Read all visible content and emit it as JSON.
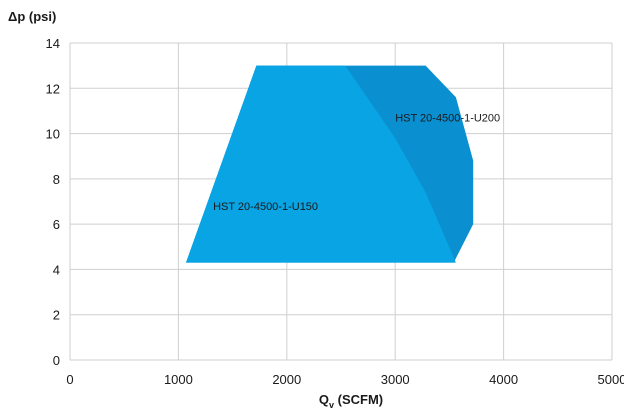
{
  "chart_data": {
    "type": "area",
    "xlabel": "Q",
    "xlabel_subscript": "v",
    "xlabel_unit": "(SCFM)",
    "ylabel": "Δp (psi)",
    "xlim": [
      0,
      5000
    ],
    "ylim": [
      0,
      14
    ],
    "x_ticks": [
      0,
      1000,
      2000,
      3000,
      4000,
      5000
    ],
    "y_ticks": [
      0,
      2,
      4,
      6,
      8,
      10,
      12,
      14
    ],
    "grid": true,
    "series": [
      {
        "name": "HST 20-4500-1-U200",
        "color": "#0a8fd0",
        "points": [
          [
            1720,
            13.0
          ],
          [
            3280,
            13.0
          ],
          [
            3560,
            11.6
          ],
          [
            3720,
            8.8
          ],
          [
            3720,
            6.0
          ],
          [
            3540,
            4.3
          ],
          [
            1070,
            4.3
          ]
        ]
      },
      {
        "name": "HST 20-4500-1-U150",
        "color": "#09a4e4",
        "points": [
          [
            1720,
            13.0
          ],
          [
            2540,
            13.0
          ],
          [
            3000,
            9.8
          ],
          [
            3280,
            7.4
          ],
          [
            3560,
            4.3
          ],
          [
            1070,
            4.3
          ]
        ]
      }
    ],
    "annotations": [
      {
        "text": "HST 20-4500-1-U200",
        "x": 3000,
        "y": 10.7
      },
      {
        "text": "HST 20-4500-1-U150",
        "x": 1320,
        "y": 6.8
      }
    ]
  }
}
